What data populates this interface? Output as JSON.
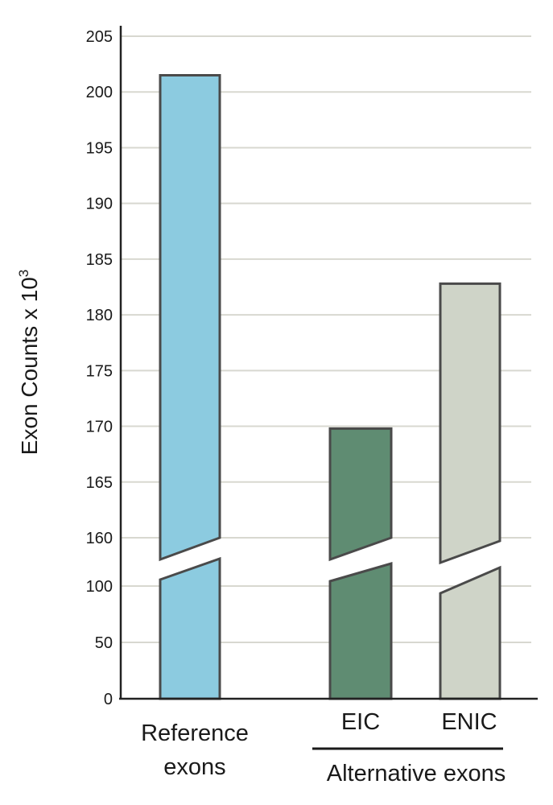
{
  "chart_data": {
    "type": "bar",
    "ylabel": "Exon Counts x 10",
    "ylabel_superscript": "3",
    "y_axis_break": {
      "lower_range": [
        0,
        100
      ],
      "upper_range": [
        160,
        205
      ]
    },
    "yticks_lower": [
      "0",
      "50",
      "100"
    ],
    "yticks_upper": [
      "160",
      "165",
      "170",
      "175",
      "180",
      "185",
      "190",
      "195",
      "200",
      "205"
    ],
    "grid": true,
    "categories": [
      {
        "label_lines": [
          "Reference",
          "exons"
        ],
        "value": 201.5,
        "color": "#8ccbe0"
      },
      {
        "label_lines": [
          "EIC"
        ],
        "value": 169.8,
        "color": "#5f8c72"
      },
      {
        "label_lines": [
          "ENIC"
        ],
        "value": 182.8,
        "color": "#cfd4c8"
      }
    ],
    "group_label": "Alternative exons"
  }
}
